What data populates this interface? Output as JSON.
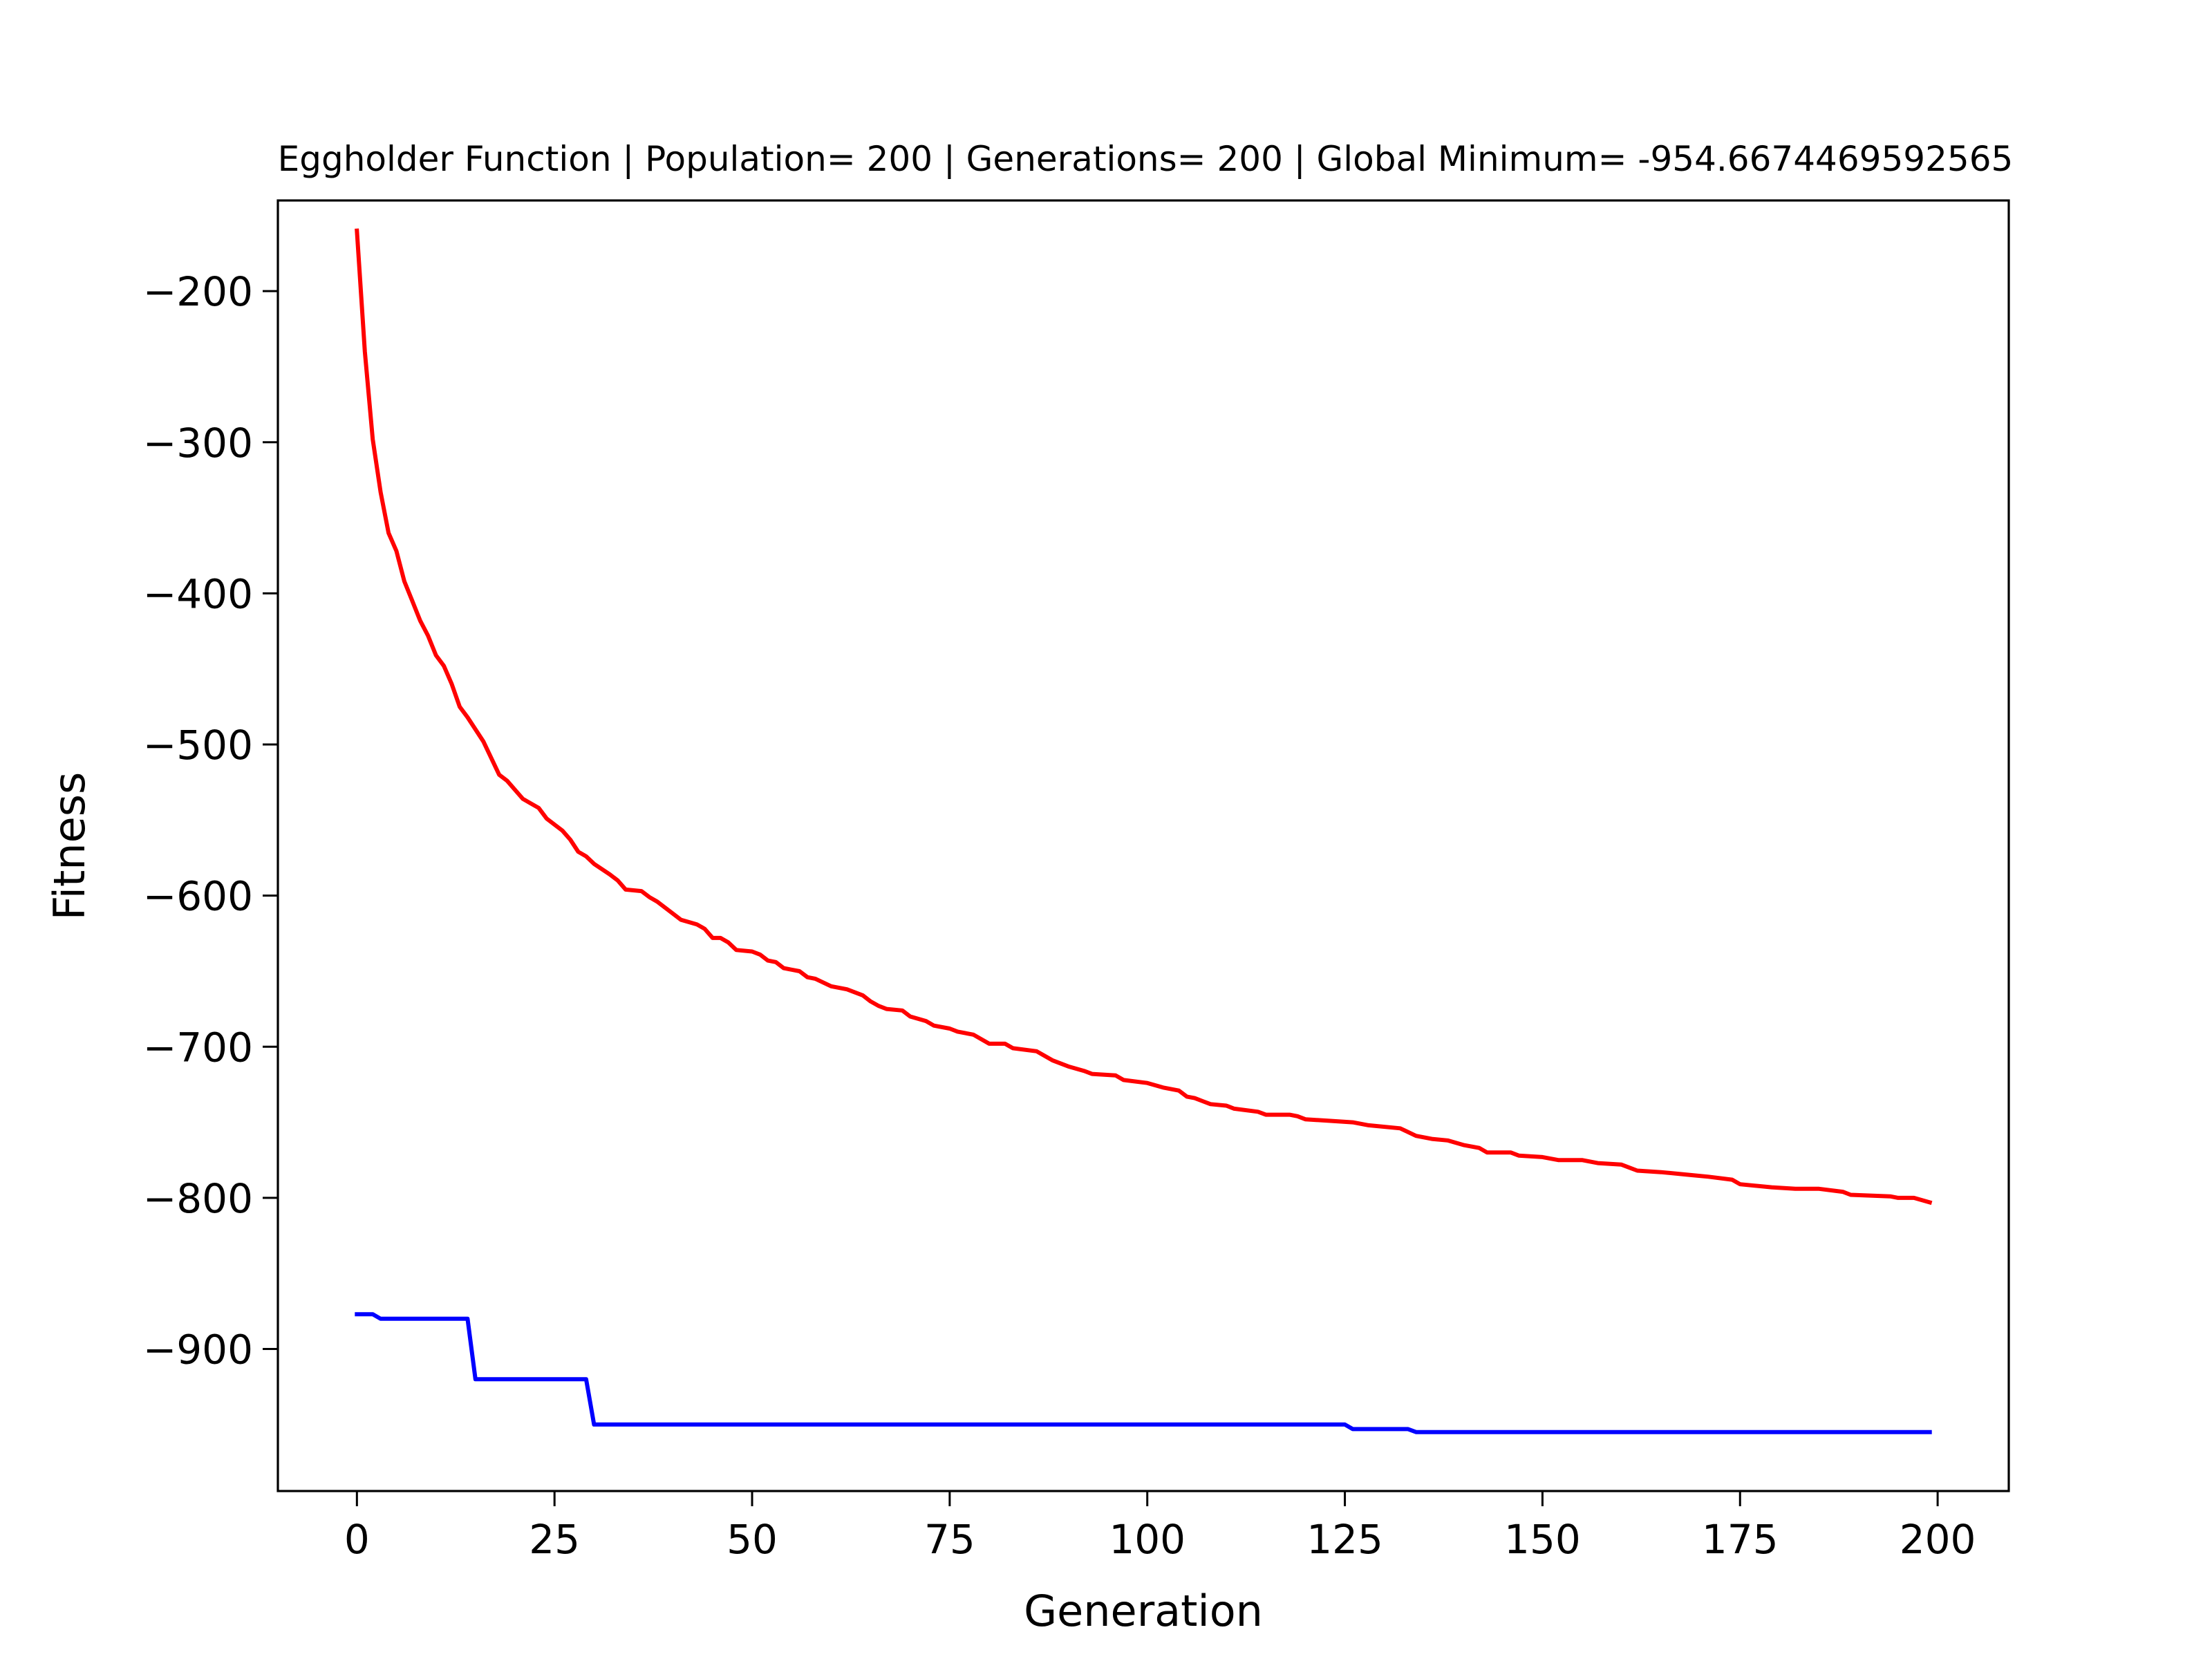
{
  "chart_data": {
    "type": "line",
    "title": "Eggholder Function | Population= 200 | Generations= 200 | Global Minimum= -954.6674469592565",
    "xlabel": "Generation",
    "ylabel": "Fitness",
    "xlim": [
      -10,
      209
    ],
    "ylim": [
      -994,
      -140
    ],
    "xticks": [
      0,
      25,
      50,
      75,
      100,
      125,
      150,
      175,
      200
    ],
    "yticks": [
      -200,
      -300,
      -400,
      -500,
      -600,
      -700,
      -800,
      -900
    ],
    "xtick_labels": [
      "0",
      "25",
      "50",
      "75",
      "100",
      "125",
      "150",
      "175",
      "200"
    ],
    "ytick_labels": [
      "−200",
      "−300",
      "−400",
      "−500",
      "−600",
      "−700",
      "−800",
      "−900"
    ],
    "grid": false,
    "series": [
      {
        "color": "#ff0000",
        "points": [
          [
            0,
            -160
          ],
          [
            1,
            -240
          ],
          [
            2,
            -298
          ],
          [
            3,
            -333
          ],
          [
            4,
            -360
          ],
          [
            5,
            -372
          ],
          [
            6,
            -392
          ],
          [
            7,
            -405
          ],
          [
            8,
            -418
          ],
          [
            9,
            -428
          ],
          [
            10,
            -441
          ],
          [
            11,
            -448
          ],
          [
            12,
            -460
          ],
          [
            13,
            -475
          ],
          [
            14,
            -482
          ],
          [
            16,
            -498
          ],
          [
            17,
            -509
          ],
          [
            18,
            -520
          ],
          [
            19,
            -524
          ],
          [
            21,
            -536
          ],
          [
            23,
            -542
          ],
          [
            24,
            -549
          ],
          [
            26,
            -557
          ],
          [
            27,
            -563
          ],
          [
            28,
            -571
          ],
          [
            29,
            -574
          ],
          [
            30,
            -579
          ],
          [
            32,
            -586
          ],
          [
            33,
            -590
          ],
          [
            34,
            -596
          ],
          [
            36,
            -597
          ],
          [
            37,
            -601
          ],
          [
            38,
            -604
          ],
          [
            40,
            -612
          ],
          [
            41,
            -616
          ],
          [
            43,
            -619
          ],
          [
            44,
            -622
          ],
          [
            45,
            -628
          ],
          [
            46,
            -628
          ],
          [
            47,
            -631
          ],
          [
            48,
            -636
          ],
          [
            50,
            -637
          ],
          [
            51,
            -639
          ],
          [
            52,
            -643
          ],
          [
            53,
            -644
          ],
          [
            54,
            -648
          ],
          [
            56,
            -650
          ],
          [
            57,
            -654
          ],
          [
            58,
            -655
          ],
          [
            60,
            -660
          ],
          [
            62,
            -662
          ],
          [
            64,
            -666
          ],
          [
            65,
            -670
          ],
          [
            66,
            -673
          ],
          [
            67,
            -675
          ],
          [
            69,
            -676
          ],
          [
            70,
            -680
          ],
          [
            72,
            -683
          ],
          [
            73,
            -686
          ],
          [
            75,
            -688
          ],
          [
            76,
            -690
          ],
          [
            78,
            -692
          ],
          [
            80,
            -698
          ],
          [
            82,
            -698
          ],
          [
            83,
            -701
          ],
          [
            86,
            -703
          ],
          [
            87,
            -706
          ],
          [
            88,
            -709
          ],
          [
            90,
            -713
          ],
          [
            92,
            -716
          ],
          [
            93,
            -718
          ],
          [
            96,
            -719
          ],
          [
            97,
            -722
          ],
          [
            100,
            -724
          ],
          [
            102,
            -727
          ],
          [
            104,
            -729
          ],
          [
            105,
            -733
          ],
          [
            106,
            -734
          ],
          [
            107,
            -736
          ],
          [
            108,
            -738
          ],
          [
            110,
            -739
          ],
          [
            111,
            -741
          ],
          [
            114,
            -743
          ],
          [
            115,
            -745
          ],
          [
            118,
            -745
          ],
          [
            119,
            -746
          ],
          [
            120,
            -748
          ],
          [
            123,
            -749
          ],
          [
            126,
            -750
          ],
          [
            128,
            -752
          ],
          [
            132,
            -754
          ],
          [
            134,
            -759
          ],
          [
            136,
            -761
          ],
          [
            138,
            -762
          ],
          [
            140,
            -765
          ],
          [
            142,
            -767
          ],
          [
            143,
            -770
          ],
          [
            146,
            -770
          ],
          [
            147,
            -772
          ],
          [
            150,
            -773
          ],
          [
            152,
            -775
          ],
          [
            155,
            -775
          ],
          [
            157,
            -777
          ],
          [
            160,
            -778
          ],
          [
            161,
            -780
          ],
          [
            162,
            -782
          ],
          [
            165,
            -783
          ],
          [
            169,
            -785
          ],
          [
            171,
            -786
          ],
          [
            174,
            -788
          ],
          [
            175,
            -791
          ],
          [
            179,
            -793
          ],
          [
            182,
            -794
          ],
          [
            185,
            -794
          ],
          [
            188,
            -796
          ],
          [
            189,
            -798
          ],
          [
            194,
            -799
          ],
          [
            195,
            -800
          ],
          [
            197,
            -800
          ],
          [
            199,
            -803
          ]
        ]
      },
      {
        "color": "#0000ff",
        "points": [
          [
            0,
            -877
          ],
          [
            2,
            -877
          ],
          [
            3,
            -880
          ],
          [
            14,
            -880
          ],
          [
            15,
            -920
          ],
          [
            29,
            -920
          ],
          [
            30,
            -950
          ],
          [
            125,
            -950
          ],
          [
            126,
            -953
          ],
          [
            133,
            -953
          ],
          [
            134,
            -955
          ],
          [
            199,
            -955
          ]
        ]
      }
    ]
  }
}
